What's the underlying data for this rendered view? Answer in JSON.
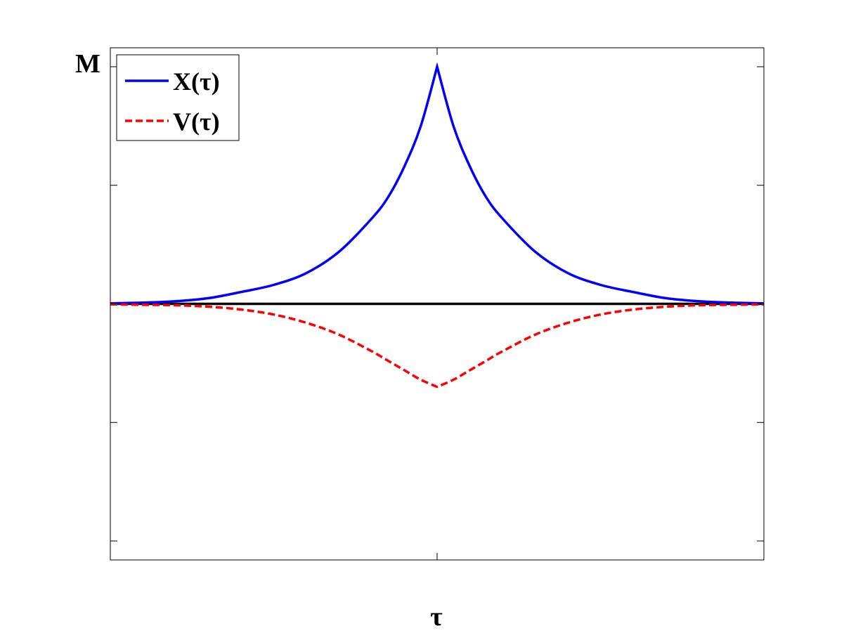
{
  "chart_data": {
    "type": "line",
    "title": "",
    "xlabel": "τ",
    "ylabel": "",
    "y_top_label": "M",
    "xlim": [
      -1,
      1
    ],
    "ylim": [
      -1.08,
      1.08
    ],
    "grid": false,
    "legend": {
      "position": "top-left"
    },
    "series": [
      {
        "name": "X(τ)",
        "color": "#0000ff",
        "style": "solid",
        "x": [
          -1,
          -0.9,
          -0.8,
          -0.7,
          -0.6,
          -0.5,
          -0.4,
          -0.3,
          -0.2,
          -0.15,
          -0.1,
          -0.05,
          0,
          0.05,
          0.1,
          0.15,
          0.2,
          0.3,
          0.4,
          0.5,
          0.6,
          0.7,
          0.8,
          0.9,
          1
        ],
        "y": [
          0.002,
          0.005,
          0.011,
          0.024,
          0.05,
          0.08,
          0.13,
          0.22,
          0.36,
          0.45,
          0.58,
          0.75,
          1.0,
          0.75,
          0.58,
          0.45,
          0.36,
          0.22,
          0.13,
          0.08,
          0.05,
          0.024,
          0.011,
          0.005,
          0.002
        ]
      },
      {
        "name": "V(τ)",
        "color": "#ff0000",
        "style": "dashed",
        "x": [
          -1,
          -0.9,
          -0.8,
          -0.7,
          -0.6,
          -0.5,
          -0.4,
          -0.3,
          -0.2,
          -0.15,
          -0.1,
          -0.05,
          0,
          0.05,
          0.1,
          0.15,
          0.2,
          0.3,
          0.4,
          0.5,
          0.6,
          0.7,
          0.8,
          0.9,
          1
        ],
        "y": [
          -0.002,
          -0.004,
          -0.006,
          -0.012,
          -0.024,
          -0.045,
          -0.08,
          -0.13,
          -0.2,
          -0.24,
          -0.28,
          -0.32,
          -0.35,
          -0.32,
          -0.28,
          -0.24,
          -0.2,
          -0.13,
          -0.08,
          -0.045,
          -0.024,
          -0.012,
          -0.006,
          -0.004,
          -0.002
        ]
      }
    ],
    "reference_line": {
      "y": 0,
      "color": "#000000"
    }
  }
}
